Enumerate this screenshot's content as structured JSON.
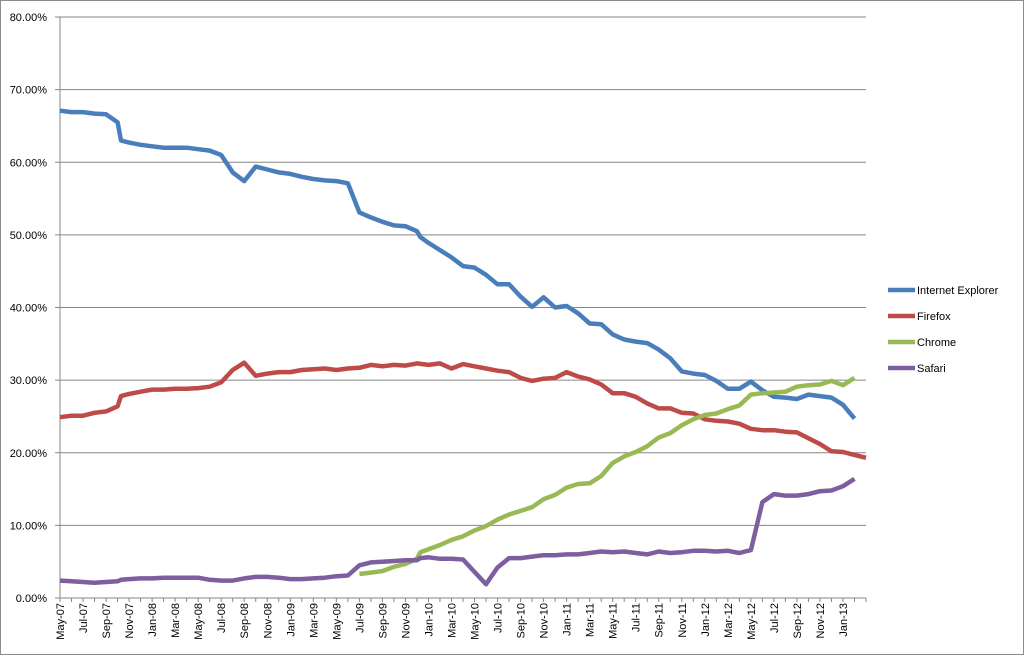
{
  "chart_data": {
    "type": "line",
    "title": "",
    "xlabel": "",
    "ylabel": "",
    "ylim": [
      0,
      80
    ],
    "y_unit": "%",
    "grid": "horizontal",
    "legend_position": "right",
    "y_ticks": [
      "0.00%",
      "10.00%",
      "20.00%",
      "30.00%",
      "40.00%",
      "50.00%",
      "60.00%",
      "70.00%",
      "80.00%"
    ],
    "x_ticks": [
      "May-07",
      "Jul-07",
      "Sep-07",
      "Nov-07",
      "Jan-08",
      "Mar-08",
      "May-08",
      "Jul-08",
      "Sep-08",
      "Nov-08",
      "Jan-09",
      "Mar-09",
      "May-09",
      "Jul-09",
      "Sep-09",
      "Nov-09",
      "Jan-10",
      "Mar-10",
      "May-10",
      "Jul-10",
      "Sep-10",
      "Nov-10",
      "Jan-11",
      "Mar-11",
      "May-11",
      "Jul-11",
      "Sep-11",
      "Nov-11",
      "Jan-12",
      "Mar-12",
      "May-12",
      "Jul-12",
      "Sep-12",
      "Nov-12",
      "Jan-13"
    ],
    "x_start": "May-07",
    "series": [
      {
        "name": "Internet Explorer",
        "color": "#4a7ebb",
        "values": [
          [
            0,
            67.1
          ],
          [
            1,
            66.9
          ],
          [
            2,
            66.9
          ],
          [
            3,
            66.7
          ],
          [
            4,
            66.6
          ],
          [
            5,
            65.5
          ],
          [
            5.3,
            63.0
          ],
          [
            6,
            62.7
          ],
          [
            7,
            62.4
          ],
          [
            8,
            62.2
          ],
          [
            9,
            62.0
          ],
          [
            10,
            62.0
          ],
          [
            11,
            62.0
          ],
          [
            12,
            61.8
          ],
          [
            13,
            61.6
          ],
          [
            14,
            61.0
          ],
          [
            15,
            58.6
          ],
          [
            16,
            57.4
          ],
          [
            17,
            59.4
          ],
          [
            18,
            59.0
          ],
          [
            19,
            58.6
          ],
          [
            20,
            58.4
          ],
          [
            21,
            58.0
          ],
          [
            22,
            57.7
          ],
          [
            23,
            57.5
          ],
          [
            24,
            57.4
          ],
          [
            25,
            57.1
          ],
          [
            26,
            53.1
          ],
          [
            27,
            52.4
          ],
          [
            28,
            51.8
          ],
          [
            29,
            51.3
          ],
          [
            30,
            51.2
          ],
          [
            31,
            50.5
          ],
          [
            31.3,
            49.7
          ],
          [
            32,
            48.9
          ],
          [
            33,
            47.9
          ],
          [
            34,
            46.9
          ],
          [
            35,
            45.7
          ],
          [
            36,
            45.5
          ],
          [
            37,
            44.5
          ],
          [
            38,
            43.2
          ],
          [
            39,
            43.2
          ],
          [
            40,
            41.5
          ],
          [
            41,
            40.1
          ],
          [
            42,
            41.4
          ],
          [
            43,
            40.0
          ],
          [
            44,
            40.2
          ],
          [
            45,
            39.2
          ],
          [
            46,
            37.8
          ],
          [
            47,
            37.7
          ],
          [
            48,
            36.3
          ],
          [
            49,
            35.6
          ],
          [
            50,
            35.3
          ],
          [
            51,
            35.1
          ],
          [
            52,
            34.2
          ],
          [
            53,
            33.0
          ],
          [
            54,
            31.2
          ],
          [
            55,
            30.9
          ],
          [
            56,
            30.7
          ],
          [
            57,
            29.9
          ],
          [
            58,
            28.8
          ],
          [
            59,
            28.8
          ],
          [
            60,
            29.8
          ],
          [
            61,
            28.6
          ],
          [
            62,
            27.7
          ],
          [
            63,
            27.6
          ],
          [
            64,
            27.4
          ],
          [
            65,
            28.0
          ],
          [
            66,
            27.8
          ],
          [
            67,
            27.6
          ],
          [
            68,
            26.6
          ],
          [
            69,
            24.7
          ]
        ]
      },
      {
        "name": "Firefox",
        "color": "#be4b48",
        "values": [
          [
            0,
            24.9
          ],
          [
            1,
            25.1
          ],
          [
            2,
            25.1
          ],
          [
            3,
            25.5
          ],
          [
            4,
            25.7
          ],
          [
            5,
            26.4
          ],
          [
            5.3,
            27.8
          ],
          [
            6,
            28.1
          ],
          [
            7,
            28.4
          ],
          [
            8,
            28.7
          ],
          [
            9,
            28.7
          ],
          [
            10,
            28.8
          ],
          [
            11,
            28.8
          ],
          [
            12,
            28.9
          ],
          [
            13,
            29.1
          ],
          [
            14,
            29.7
          ],
          [
            15,
            31.4
          ],
          [
            16,
            32.4
          ],
          [
            17,
            30.6
          ],
          [
            18,
            30.9
          ],
          [
            19,
            31.1
          ],
          [
            20,
            31.1
          ],
          [
            21,
            31.4
          ],
          [
            22,
            31.5
          ],
          [
            23,
            31.6
          ],
          [
            24,
            31.4
          ],
          [
            25,
            31.6
          ],
          [
            26,
            31.7
          ],
          [
            27,
            32.1
          ],
          [
            28,
            31.9
          ],
          [
            29,
            32.1
          ],
          [
            30,
            32.0
          ],
          [
            31,
            32.3
          ],
          [
            32,
            32.1
          ],
          [
            33,
            32.3
          ],
          [
            34,
            31.6
          ],
          [
            35,
            32.2
          ],
          [
            36,
            31.9
          ],
          [
            37,
            31.6
          ],
          [
            38,
            31.3
          ],
          [
            39,
            31.1
          ],
          [
            40,
            30.3
          ],
          [
            41,
            29.9
          ],
          [
            42,
            30.2
          ],
          [
            43,
            30.3
          ],
          [
            44,
            31.1
          ],
          [
            45,
            30.5
          ],
          [
            46,
            30.1
          ],
          [
            47,
            29.4
          ],
          [
            48,
            28.2
          ],
          [
            49,
            28.2
          ],
          [
            50,
            27.7
          ],
          [
            51,
            26.8
          ],
          [
            52,
            26.1
          ],
          [
            53,
            26.1
          ],
          [
            54,
            25.5
          ],
          [
            55,
            25.4
          ],
          [
            56,
            24.6
          ],
          [
            57,
            24.4
          ],
          [
            58,
            24.3
          ],
          [
            59,
            24.0
          ],
          [
            60,
            23.3
          ],
          [
            61,
            23.1
          ],
          [
            62,
            23.1
          ],
          [
            63,
            22.9
          ],
          [
            64,
            22.8
          ],
          [
            65,
            22.0
          ],
          [
            66,
            21.2
          ],
          [
            67,
            20.2
          ],
          [
            68,
            20.1
          ],
          [
            69,
            19.7
          ],
          [
            70,
            19.3
          ]
        ]
      },
      {
        "name": "Chrome",
        "color": "#98b954",
        "values": [
          [
            26,
            3.3
          ],
          [
            27,
            3.5
          ],
          [
            28,
            3.7
          ],
          [
            29,
            4.3
          ],
          [
            30,
            4.7
          ],
          [
            31,
            5.4
          ],
          [
            31.3,
            6.3
          ],
          [
            32,
            6.7
          ],
          [
            33,
            7.3
          ],
          [
            34,
            8.0
          ],
          [
            35,
            8.5
          ],
          [
            36,
            9.3
          ],
          [
            37,
            9.9
          ],
          [
            38,
            10.8
          ],
          [
            39,
            11.5
          ],
          [
            40,
            12.0
          ],
          [
            41,
            12.5
          ],
          [
            42,
            13.6
          ],
          [
            43,
            14.2
          ],
          [
            44,
            15.2
          ],
          [
            45,
            15.7
          ],
          [
            46,
            15.8
          ],
          [
            47,
            16.8
          ],
          [
            48,
            18.6
          ],
          [
            49,
            19.5
          ],
          [
            50,
            20.1
          ],
          [
            51,
            20.9
          ],
          [
            52,
            22.1
          ],
          [
            53,
            22.7
          ],
          [
            54,
            23.8
          ],
          [
            55,
            24.6
          ],
          [
            56,
            25.2
          ],
          [
            57,
            25.4
          ],
          [
            58,
            26.0
          ],
          [
            59,
            26.5
          ],
          [
            60,
            28.0
          ],
          [
            61,
            28.2
          ],
          [
            62,
            28.3
          ],
          [
            63,
            28.4
          ],
          [
            64,
            29.1
          ],
          [
            65,
            29.3
          ],
          [
            66,
            29.4
          ],
          [
            67,
            29.9
          ],
          [
            68,
            29.3
          ],
          [
            69,
            30.3
          ]
        ]
      },
      {
        "name": "Safari",
        "color": "#7d5fa0",
        "values": [
          [
            0,
            2.4
          ],
          [
            1,
            2.3
          ],
          [
            2,
            2.2
          ],
          [
            3,
            2.1
          ],
          [
            4,
            2.2
          ],
          [
            5,
            2.3
          ],
          [
            5.3,
            2.5
          ],
          [
            6,
            2.6
          ],
          [
            7,
            2.7
          ],
          [
            8,
            2.7
          ],
          [
            9,
            2.8
          ],
          [
            10,
            2.8
          ],
          [
            11,
            2.8
          ],
          [
            12,
            2.8
          ],
          [
            13,
            2.5
          ],
          [
            14,
            2.4
          ],
          [
            15,
            2.4
          ],
          [
            16,
            2.7
          ],
          [
            17,
            2.9
          ],
          [
            18,
            2.9
          ],
          [
            19,
            2.8
          ],
          [
            20,
            2.6
          ],
          [
            21,
            2.6
          ],
          [
            22,
            2.7
          ],
          [
            23,
            2.8
          ],
          [
            24,
            3.0
          ],
          [
            25,
            3.1
          ],
          [
            26,
            4.5
          ],
          [
            27,
            4.9
          ],
          [
            28,
            5.0
          ],
          [
            29,
            5.1
          ],
          [
            30,
            5.2
          ],
          [
            31,
            5.2
          ],
          [
            31.3,
            5.5
          ],
          [
            32,
            5.6
          ],
          [
            33,
            5.4
          ],
          [
            34,
            5.4
          ],
          [
            35,
            5.3
          ],
          [
            36,
            3.6
          ],
          [
            37,
            1.9
          ],
          [
            38,
            4.2
          ],
          [
            39,
            5.5
          ],
          [
            40,
            5.5
          ],
          [
            41,
            5.7
          ],
          [
            42,
            5.9
          ],
          [
            43,
            5.9
          ],
          [
            44,
            6.0
          ],
          [
            45,
            6.0
          ],
          [
            46,
            6.2
          ],
          [
            47,
            6.4
          ],
          [
            48,
            6.3
          ],
          [
            49,
            6.4
          ],
          [
            50,
            6.2
          ],
          [
            51,
            6.0
          ],
          [
            52,
            6.4
          ],
          [
            53,
            6.2
          ],
          [
            54,
            6.3
          ],
          [
            55,
            6.5
          ],
          [
            56,
            6.5
          ],
          [
            57,
            6.4
          ],
          [
            58,
            6.5
          ],
          [
            59,
            6.2
          ],
          [
            60,
            6.6
          ],
          [
            61,
            13.2
          ],
          [
            62,
            14.3
          ],
          [
            63,
            14.1
          ],
          [
            64,
            14.1
          ],
          [
            65,
            14.3
          ],
          [
            66,
            14.7
          ],
          [
            67,
            14.8
          ],
          [
            68,
            15.4
          ],
          [
            69,
            16.4
          ]
        ]
      }
    ]
  }
}
